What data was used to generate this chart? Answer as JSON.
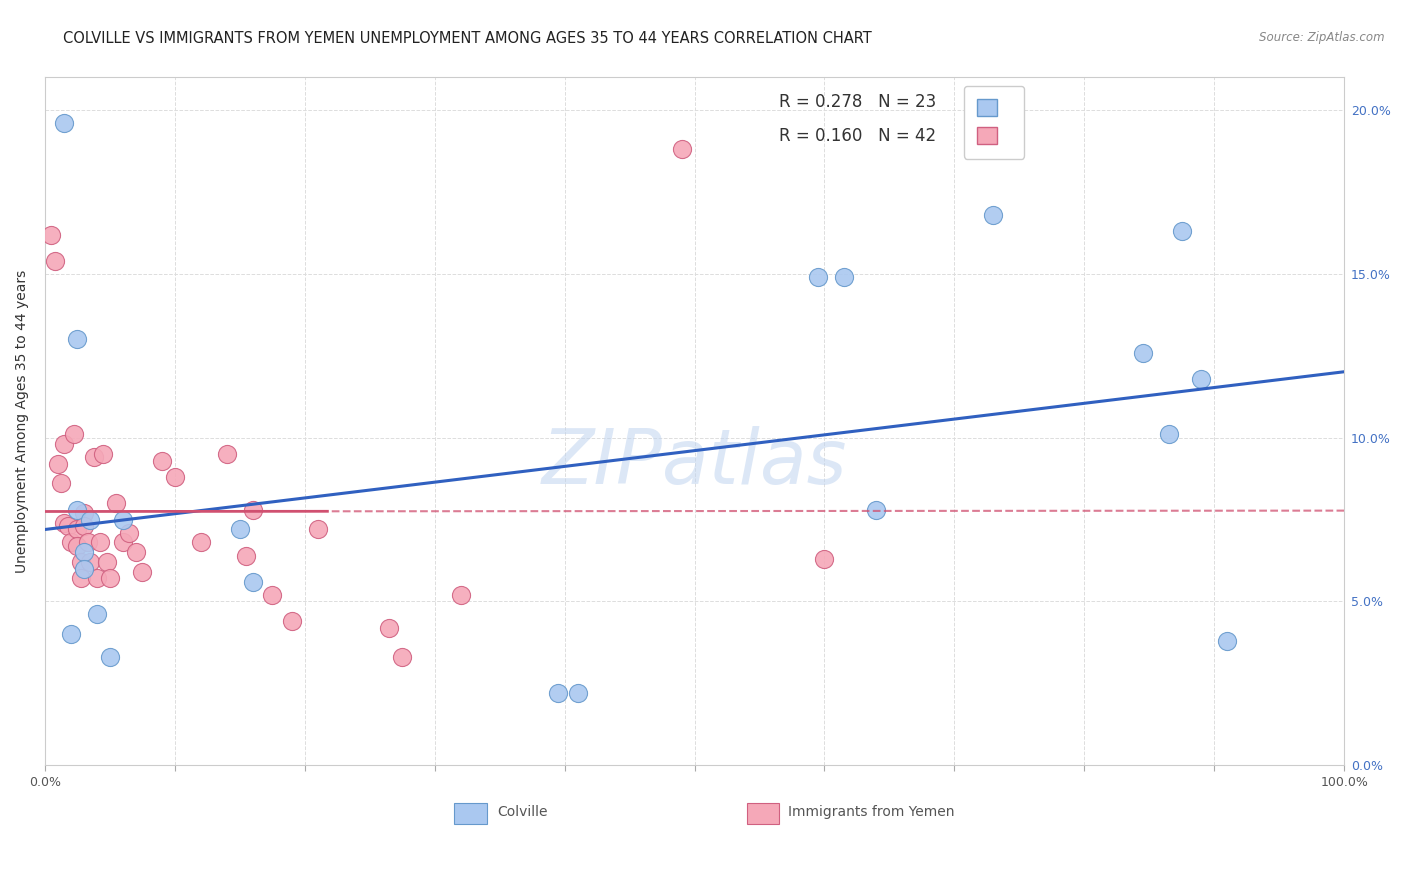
{
  "title": "COLVILLE VS IMMIGRANTS FROM YEMEN UNEMPLOYMENT AMONG AGES 35 TO 44 YEARS CORRELATION CHART",
  "source": "Source: ZipAtlas.com",
  "ylabel": "Unemployment Among Ages 35 to 44 years",
  "xlim": [
    0,
    1.0
  ],
  "ylim": [
    0,
    0.21
  ],
  "xticks": [
    0.0,
    0.1,
    0.2,
    0.3,
    0.4,
    0.5,
    0.6,
    0.7,
    0.8,
    0.9,
    1.0
  ],
  "xticklabels_show": [
    "0.0%",
    "",
    "",
    "",
    "",
    "",
    "",
    "",
    "",
    "",
    "100.0%"
  ],
  "yticks": [
    0.0,
    0.05,
    0.1,
    0.15,
    0.2
  ],
  "yticklabels": [
    "0.0%",
    "5.0%",
    "10.0%",
    "15.0%",
    "20.0%"
  ],
  "colville_x": [
    0.015,
    0.02,
    0.025,
    0.025,
    0.03,
    0.03,
    0.035,
    0.04,
    0.05,
    0.06,
    0.15,
    0.16,
    0.395,
    0.41,
    0.595,
    0.615,
    0.64,
    0.73,
    0.845,
    0.865,
    0.875,
    0.89,
    0.91
  ],
  "colville_y": [
    0.196,
    0.04,
    0.13,
    0.078,
    0.065,
    0.06,
    0.075,
    0.046,
    0.033,
    0.075,
    0.072,
    0.056,
    0.022,
    0.022,
    0.149,
    0.149,
    0.078,
    0.168,
    0.126,
    0.101,
    0.163,
    0.118,
    0.038
  ],
  "yemen_x": [
    0.005,
    0.008,
    0.01,
    0.012,
    0.015,
    0.015,
    0.018,
    0.02,
    0.022,
    0.025,
    0.025,
    0.028,
    0.028,
    0.03,
    0.03,
    0.033,
    0.035,
    0.038,
    0.04,
    0.042,
    0.045,
    0.048,
    0.05,
    0.055,
    0.06,
    0.065,
    0.07,
    0.075,
    0.09,
    0.1,
    0.12,
    0.14,
    0.155,
    0.16,
    0.175,
    0.19,
    0.21,
    0.265,
    0.275,
    0.32,
    0.49,
    0.6
  ],
  "yemen_y": [
    0.162,
    0.154,
    0.092,
    0.086,
    0.098,
    0.074,
    0.073,
    0.068,
    0.101,
    0.072,
    0.067,
    0.062,
    0.057,
    0.077,
    0.073,
    0.068,
    0.062,
    0.094,
    0.057,
    0.068,
    0.095,
    0.062,
    0.057,
    0.08,
    0.068,
    0.071,
    0.065,
    0.059,
    0.093,
    0.088,
    0.068,
    0.095,
    0.064,
    0.078,
    0.052,
    0.044,
    0.072,
    0.042,
    0.033,
    0.052,
    0.188,
    0.063
  ],
  "colville_color": "#aac8f0",
  "colville_edge": "#6699cc",
  "yemen_color": "#f5a8b8",
  "yemen_edge": "#d06080",
  "blue_line_color": "#3060c0",
  "pink_line_color": "#d05070",
  "legend_r_colville": "R = 0.278",
  "legend_n_colville": "N = 23",
  "legend_r_yemen": "R = 0.160",
  "legend_n_yemen": "N = 42",
  "watermark": "ZIPatlas",
  "background_color": "#ffffff",
  "title_fontsize": 10.5,
  "axis_label_fontsize": 10,
  "tick_fontsize": 9,
  "legend_fontsize": 12
}
